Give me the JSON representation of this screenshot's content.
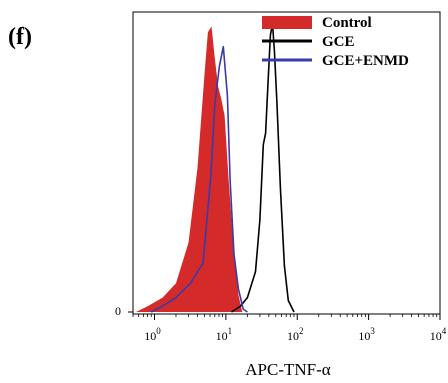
{
  "panel_label": "(f)",
  "chart_data": {
    "type": "area",
    "title": "",
    "xlabel": "APC-TNF-α",
    "ylabel": "",
    "x_scale": "log",
    "xlim": [
      0.5,
      10000
    ],
    "ylim": [
      0,
      1.04
    ],
    "y_tick_labels": [
      "0"
    ],
    "x_tick_values": [
      1,
      10,
      100,
      1000,
      10000
    ],
    "x_tick_labels": [
      {
        "base": "10",
        "exp": "0"
      },
      {
        "base": "10",
        "exp": "1"
      },
      {
        "base": "10",
        "exp": "2"
      },
      {
        "base": "10",
        "exp": "3"
      },
      {
        "base": "10",
        "exp": "4"
      }
    ],
    "legend_position": "top-right",
    "series": [
      {
        "name": "Control",
        "style": "filled",
        "color": "#d42a2a",
        "points": [
          [
            0.55,
            0.0
          ],
          [
            0.8,
            0.02
          ],
          [
            1.3,
            0.05
          ],
          [
            2.0,
            0.1
          ],
          [
            3.0,
            0.24
          ],
          [
            4.0,
            0.5
          ],
          [
            5.0,
            0.82
          ],
          [
            5.6,
            0.97
          ],
          [
            6.3,
            0.99
          ],
          [
            7.0,
            0.88
          ],
          [
            7.8,
            0.78
          ],
          [
            8.6,
            0.74
          ],
          [
            9.6,
            0.68
          ],
          [
            11.0,
            0.45
          ],
          [
            13.0,
            0.2
          ],
          [
            15.0,
            0.06
          ],
          [
            17.0,
            0.0
          ]
        ]
      },
      {
        "name": "GCE",
        "style": "line",
        "color": "#000000",
        "points": [
          [
            12.0,
            0.0
          ],
          [
            16.0,
            0.02
          ],
          [
            20.0,
            0.05
          ],
          [
            26.0,
            0.14
          ],
          [
            30.0,
            0.32
          ],
          [
            33.5,
            0.58
          ],
          [
            36.0,
            0.62
          ],
          [
            39.0,
            0.8
          ],
          [
            42.0,
            0.96
          ],
          [
            45.0,
            1.0
          ],
          [
            48.0,
            0.9
          ],
          [
            52.0,
            0.72
          ],
          [
            58.0,
            0.43
          ],
          [
            66.0,
            0.16
          ],
          [
            75.0,
            0.04
          ],
          [
            90.0,
            0.0
          ]
        ]
      },
      {
        "name": "GCE+ENMD",
        "style": "line",
        "color": "#3a3aa8",
        "points": [
          [
            0.9,
            0.0
          ],
          [
            1.3,
            0.02
          ],
          [
            2.0,
            0.05
          ],
          [
            3.2,
            0.1
          ],
          [
            4.8,
            0.17
          ],
          [
            6.2,
            0.48
          ],
          [
            7.0,
            0.72
          ],
          [
            8.1,
            0.85
          ],
          [
            9.2,
            0.92
          ],
          [
            10.5,
            0.75
          ],
          [
            11.5,
            0.45
          ],
          [
            13.0,
            0.2
          ],
          [
            15.0,
            0.08
          ],
          [
            17.5,
            0.01
          ],
          [
            20.0,
            0.0
          ]
        ]
      }
    ]
  }
}
